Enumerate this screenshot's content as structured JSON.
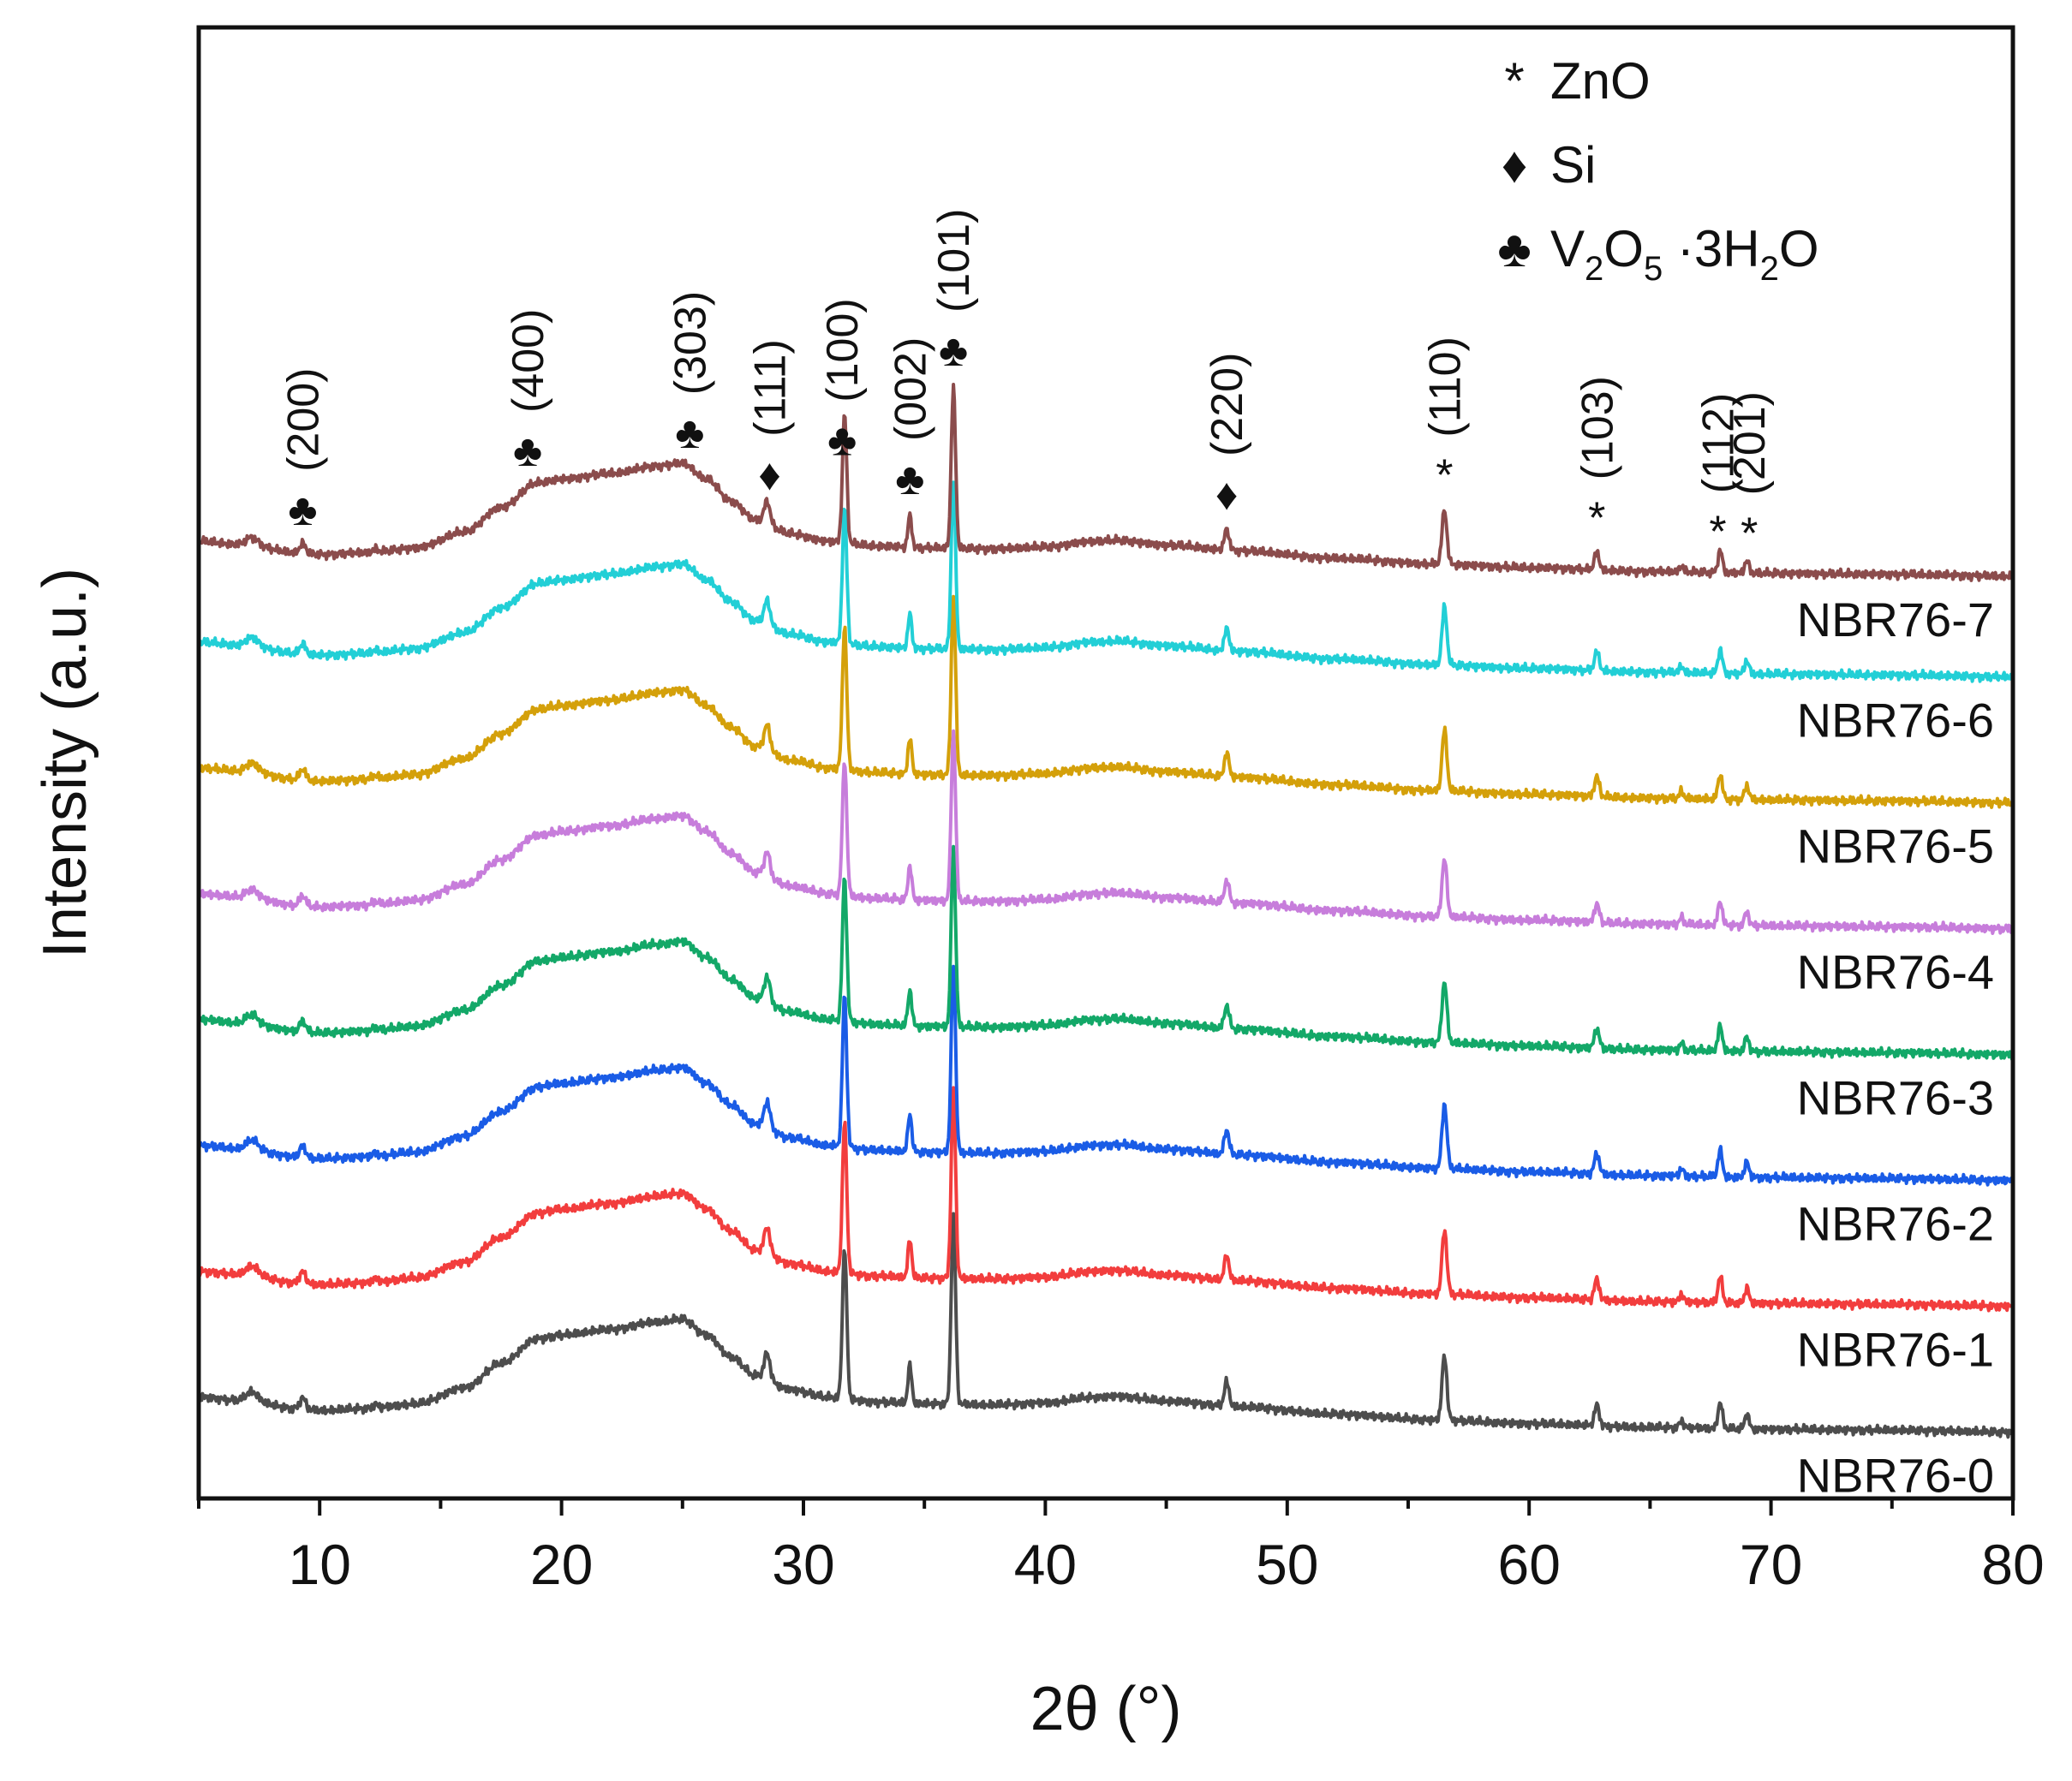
{
  "chart_data": {
    "type": "line",
    "title": "",
    "xlabel": "2θ (°)",
    "ylabel": "Intensity (a.u.)",
    "xlim": [
      5,
      80
    ],
    "xticks": [
      10,
      20,
      30,
      40,
      50,
      60,
      70,
      80
    ],
    "grid": false,
    "legend_position": "top-right",
    "legend": [
      {
        "symbol": "*",
        "text": "ZnO"
      },
      {
        "symbol": "♦",
        "text": "Si"
      },
      {
        "symbol": "♣",
        "text_parts": [
          "V",
          "2",
          "O",
          "5",
          " ·3H",
          "2",
          "O"
        ]
      }
    ],
    "profile": {
      "x": [
        5.0,
        7.0,
        9.0,
        10.0,
        12.0,
        14.0,
        16.0,
        17.5,
        19.0,
        20.0,
        22.0,
        24.0,
        25.0,
        26.0,
        27.0,
        28.0,
        29.5,
        31.0,
        33.0,
        35.0,
        38.0,
        40.0,
        42.0,
        43.0,
        45.0,
        48.0,
        52.0,
        56.0,
        60.0,
        65.0,
        70.0,
        75.0,
        80.0
      ],
      "relative_intensity": [
        0.12,
        0.08,
        0.0,
        -0.02,
        0.0,
        0.05,
        0.22,
        0.48,
        0.74,
        0.78,
        0.84,
        0.92,
        0.95,
        0.78,
        0.55,
        0.35,
        0.2,
        0.12,
        0.07,
        0.05,
        0.04,
        0.06,
        0.12,
        0.13,
        0.08,
        0.02,
        -0.06,
        -0.12,
        -0.16,
        -0.2,
        -0.22,
        -0.23,
        -0.25
      ]
    },
    "peaks": [
      {
        "x": 7.2,
        "height": 0.1,
        "width": 0.25
      },
      {
        "x": 9.3,
        "height": 0.12,
        "width": 0.12
      },
      {
        "x": 12.3,
        "height": 0.04,
        "width": 0.12
      },
      {
        "x": 28.5,
        "height": 0.28,
        "width": 0.12
      },
      {
        "x": 31.7,
        "height": 1.6,
        "width": 0.09
      },
      {
        "x": 34.4,
        "height": 0.4,
        "width": 0.08
      },
      {
        "x": 36.2,
        "height": 2.0,
        "width": 0.09
      },
      {
        "x": 47.5,
        "height": 0.26,
        "width": 0.1
      },
      {
        "x": 56.5,
        "height": 0.68,
        "width": 0.1
      },
      {
        "x": 62.8,
        "height": 0.22,
        "width": 0.1
      },
      {
        "x": 66.3,
        "height": 0.08,
        "width": 0.08
      },
      {
        "x": 67.9,
        "height": 0.28,
        "width": 0.09
      },
      {
        "x": 69.0,
        "height": 0.16,
        "width": 0.09
      }
    ],
    "series": [
      {
        "name": "NBR76-0",
        "color": "#4d4d4d",
        "offset": 0.0,
        "scale": 1.0
      },
      {
        "name": "NBR76-1",
        "color": "#f23d3d",
        "offset": 1.0,
        "scale": 1.0
      },
      {
        "name": "NBR76-2",
        "color": "#1a5ce6",
        "offset": 2.0,
        "scale": 1.0
      },
      {
        "name": "NBR76-3",
        "color": "#13a868",
        "offset": 3.0,
        "scale": 0.95
      },
      {
        "name": "NBR76-4",
        "color": "#c77ddb",
        "offset": 4.0,
        "scale": 0.9
      },
      {
        "name": "NBR76-5",
        "color": "#d4a00a",
        "offset": 5.0,
        "scale": 0.95
      },
      {
        "name": "NBR76-6",
        "color": "#22cfd6",
        "offset": 6.0,
        "scale": 0.9
      },
      {
        "name": "NBR76-7",
        "color": "#8b4c4c",
        "offset": 6.8,
        "scale": 0.85
      }
    ],
    "annotations": [
      {
        "x": 9.3,
        "symbol": "♣",
        "hkl": "(200)"
      },
      {
        "x": 18.6,
        "symbol": "♣",
        "hkl": "(400)"
      },
      {
        "x": 25.3,
        "symbol": "♣",
        "hkl": "(303)"
      },
      {
        "x": 28.6,
        "symbol": "♦",
        "hkl": "(111)"
      },
      {
        "x": 31.6,
        "symbol": "♣",
        "hkl": "(100)"
      },
      {
        "x": 34.4,
        "symbol": "♣",
        "hkl": "(002)"
      },
      {
        "x": 36.2,
        "symbol": "♣",
        "hkl": "(101)"
      },
      {
        "x": 47.5,
        "symbol": "♦",
        "hkl": "(220)"
      },
      {
        "x": 56.5,
        "symbol": "*",
        "hkl": "(110)"
      },
      {
        "x": 62.8,
        "symbol": "*",
        "hkl": "(103)"
      },
      {
        "x": 67.8,
        "symbol": "*",
        "hkl": "(112)"
      },
      {
        "x": 69.1,
        "symbol": "*",
        "hkl": "(201)"
      }
    ]
  }
}
